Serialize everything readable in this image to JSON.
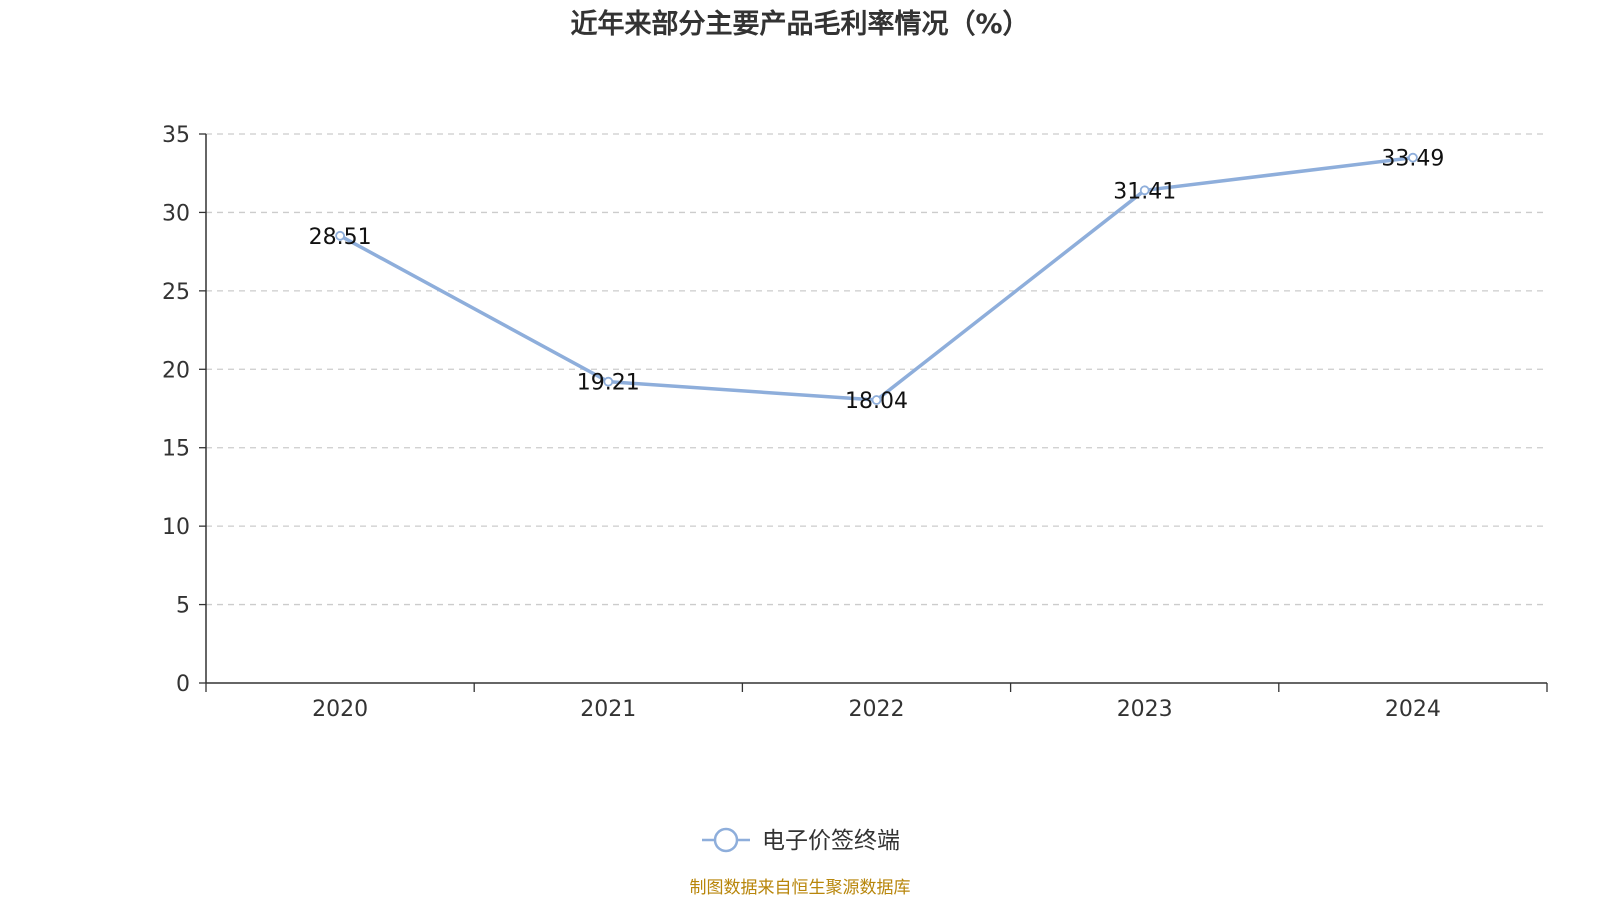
{
  "colors": {
    "series": "#8eaedb",
    "axis": "#333333",
    "grid": "#cccccc",
    "source": "#b8860b"
  },
  "chart_data": {
    "type": "line",
    "title": "近年来部分主要产品毛利率情况（%）",
    "xlabel": "",
    "ylabel": "",
    "categories": [
      "2020",
      "2021",
      "2022",
      "2023",
      "2024"
    ],
    "ylim": [
      0,
      35
    ],
    "yticks": [
      0,
      5,
      10,
      15,
      20,
      25,
      30,
      35
    ],
    "grid": true,
    "legend_position": "bottom-center",
    "series": [
      {
        "name": "电子价签终端",
        "values": [
          28.51,
          19.21,
          18.04,
          31.41,
          33.49
        ]
      }
    ]
  },
  "source_note": "制图数据来自恒生聚源数据库"
}
